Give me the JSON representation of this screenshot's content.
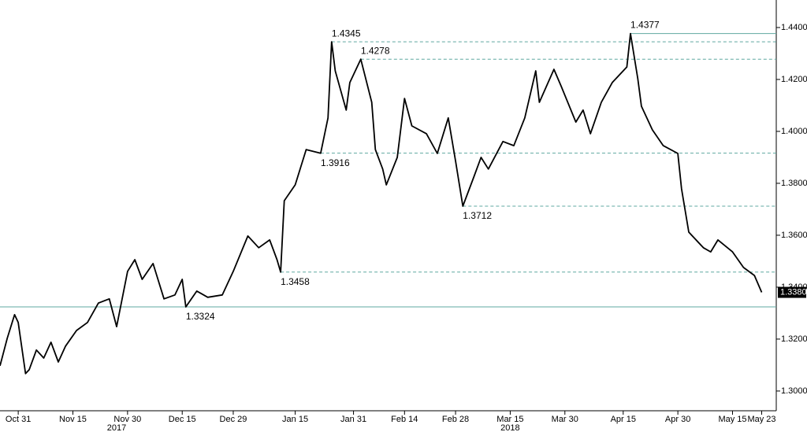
{
  "chart_data": {
    "type": "line",
    "x": [
      "2017-10-26",
      "2017-10-28",
      "2017-10-30",
      "2017-10-31",
      "2017-11-02",
      "2017-11-03",
      "2017-11-05",
      "2017-11-07",
      "2017-11-09",
      "2017-11-11",
      "2017-11-13",
      "2017-11-16",
      "2017-11-19",
      "2017-11-22",
      "2017-11-25",
      "2017-11-27",
      "2017-11-30",
      "2017-12-02",
      "2017-12-04",
      "2017-12-07",
      "2017-12-10",
      "2017-12-13",
      "2017-12-15",
      "2017-12-16",
      "2017-12-19",
      "2017-12-22",
      "2017-12-26",
      "2017-12-29",
      "2018-01-02",
      "2018-01-05",
      "2018-01-08",
      "2018-01-10",
      "2018-01-11",
      "2018-01-12",
      "2018-01-15",
      "2018-01-18",
      "2018-01-22",
      "2018-01-24",
      "2018-01-25",
      "2018-01-26",
      "2018-01-29",
      "2018-01-30",
      "2018-02-02",
      "2018-02-05",
      "2018-02-06",
      "2018-02-08",
      "2018-02-09",
      "2018-02-12",
      "2018-02-14",
      "2018-02-16",
      "2018-02-20",
      "2018-02-23",
      "2018-02-26",
      "2018-02-28",
      "2018-03-02",
      "2018-03-05",
      "2018-03-07",
      "2018-03-09",
      "2018-03-13",
      "2018-03-16",
      "2018-03-19",
      "2018-03-22",
      "2018-03-23",
      "2018-03-27",
      "2018-03-29",
      "2018-04-02",
      "2018-04-04",
      "2018-04-06",
      "2018-04-09",
      "2018-04-12",
      "2018-04-16",
      "2018-04-17",
      "2018-04-19",
      "2018-04-20",
      "2018-04-23",
      "2018-04-26",
      "2018-04-30",
      "2018-05-01",
      "2018-05-03",
      "2018-05-07",
      "2018-05-09",
      "2018-05-11",
      "2018-05-15",
      "2018-05-18",
      "2018-05-21",
      "2018-05-23"
    ],
    "series": [
      {
        "color": "#000000",
        "values": [
          1.3097,
          1.3203,
          1.3294,
          1.3264,
          1.3067,
          1.3082,
          1.3158,
          1.3127,
          1.3188,
          1.3112,
          1.3173,
          1.3233,
          1.3264,
          1.3339,
          1.3355,
          1.3248,
          1.3461,
          1.3506,
          1.343,
          1.3491,
          1.3355,
          1.337,
          1.343,
          1.3324,
          1.3385,
          1.3361,
          1.337,
          1.3461,
          1.3597,
          1.3552,
          1.3582,
          1.3506,
          1.3458,
          1.3733,
          1.3794,
          1.393,
          1.3916,
          1.4052,
          1.4345,
          1.4233,
          1.4082,
          1.4188,
          1.4278,
          1.4112,
          1.393,
          1.3855,
          1.3794,
          1.39,
          1.4127,
          1.4021,
          1.3991,
          1.3915,
          1.4052,
          1.3885,
          1.3712,
          1.3824,
          1.39,
          1.3855,
          1.3961,
          1.3945,
          1.4052,
          1.4233,
          1.4112,
          1.4239,
          1.4173,
          1.4036,
          1.4082,
          1.3991,
          1.4112,
          1.4188,
          1.4248,
          1.4377,
          1.4203,
          1.4097,
          1.4006,
          1.3945,
          1.3915,
          1.3779,
          1.3612,
          1.3552,
          1.3536,
          1.3582,
          1.3536,
          1.3476,
          1.3445,
          1.338
        ]
      }
    ],
    "xlim": [
      "2017-10-26",
      "2018-05-27"
    ],
    "xticks": [
      {
        "value": "2017-10-31",
        "label": "Oct 31"
      },
      {
        "value": "2017-11-15",
        "label": "Nov 15"
      },
      {
        "value": "2017-11-30",
        "label": "Nov 30"
      },
      {
        "value": "2017-12-15",
        "label": "Dec 15"
      },
      {
        "value": "2017-12-29",
        "label": "Dec 29"
      },
      {
        "value": "2018-01-15",
        "label": "Jan 15"
      },
      {
        "value": "2018-01-31",
        "label": "Jan 31"
      },
      {
        "value": "2018-02-14",
        "label": "Feb 14"
      },
      {
        "value": "2018-02-28",
        "label": "Feb 28"
      },
      {
        "value": "2018-03-15",
        "label": "Mar 15"
      },
      {
        "value": "2018-03-30",
        "label": "Mar 30"
      },
      {
        "value": "2018-04-15",
        "label": "Apr 15"
      },
      {
        "value": "2018-04-30",
        "label": "Apr 30"
      },
      {
        "value": "2018-05-15",
        "label": "May 15"
      },
      {
        "value": "2018-05-23",
        "label": "May 23"
      }
    ],
    "year_labels": [
      {
        "value": "2017-11-27",
        "label": "2017"
      },
      {
        "value": "2018-03-15",
        "label": "2018"
      }
    ],
    "ylim": [
      1.2924,
      1.4506
    ],
    "yticks": [
      {
        "value": 1.3,
        "label": "1.3000"
      },
      {
        "value": 1.32,
        "label": "1.3200"
      },
      {
        "value": 1.34,
        "label": "1.3400"
      },
      {
        "value": 1.36,
        "label": "1.3600"
      },
      {
        "value": 1.38,
        "label": "1.3800"
      },
      {
        "value": 1.4,
        "label": "1.4000"
      },
      {
        "value": 1.42,
        "label": "1.4200"
      },
      {
        "value": 1.44,
        "label": "1.4400"
      }
    ],
    "level_color": "#5fa8a0",
    "annotations": [
      {
        "value": 1.3324,
        "x": "2017-12-16",
        "line": "solid"
      },
      {
        "value": 1.3458,
        "x": "2018-01-11",
        "line": "dashed"
      },
      {
        "value": 1.3916,
        "x": "2018-01-22",
        "line": "dashed"
      },
      {
        "value": 1.4345,
        "x": "2018-01-25",
        "line": "dashed"
      },
      {
        "value": 1.4278,
        "x": "2018-02-02",
        "line": "dashed"
      },
      {
        "value": 1.3712,
        "x": "2018-03-02",
        "line": "dashed"
      },
      {
        "value": 1.4377,
        "x": "2018-04-17",
        "line": "solid"
      }
    ],
    "last_value": {
      "value": 1.338,
      "label": "1.3380"
    }
  }
}
